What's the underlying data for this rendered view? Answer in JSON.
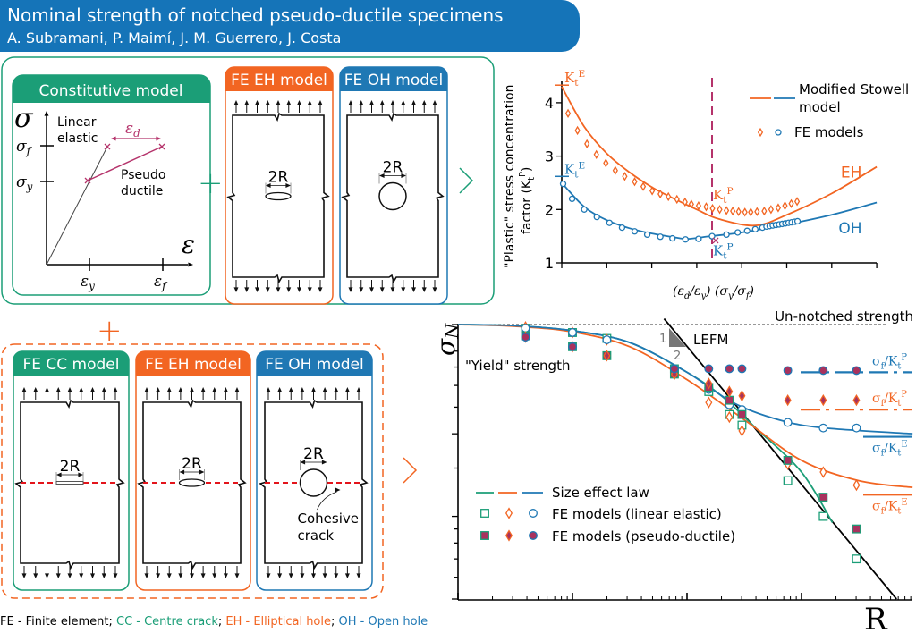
{
  "header": {
    "title": "Nominal strength of notched pseudo-ductile specimens",
    "authors": "A. Subramani, P. Maimí, J. M. Guerrero, J. Costa"
  },
  "colors": {
    "banner": "#1574b8",
    "green": "#1b9e77",
    "orange": "#f26522",
    "blue": "#1f78b4",
    "magenta": "#b5336b",
    "red": "#e3141b",
    "pd_fill": "#a8325e"
  },
  "constitutive": {
    "title": "Constitutive model",
    "sigma": "σ",
    "epsilon": "ε",
    "sigma_f": [
      [
        "σ",
        ""
      ],
      [
        "f",
        "sub"
      ]
    ],
    "sigma_y": [
      [
        "σ",
        ""
      ],
      [
        "y",
        "sub"
      ]
    ],
    "eps_y": [
      [
        "ε",
        ""
      ],
      [
        "y",
        "sub"
      ]
    ],
    "eps_f": [
      [
        "ε",
        ""
      ],
      [
        "f",
        "sub"
      ]
    ],
    "eps_d": [
      [
        "ε",
        ""
      ],
      [
        "d",
        "sub"
      ]
    ],
    "linear": [
      "Linear",
      "elastic"
    ],
    "pseudo": [
      "Pseudo",
      "ductile"
    ]
  },
  "plus": "+",
  "top_models": [
    {
      "title": "FE EH model",
      "hole": "ellipse",
      "dim": "2R",
      "color": "orange"
    },
    {
      "title": "FE OH model",
      "hole": "circle",
      "dim": "2R",
      "color": "blue"
    }
  ],
  "bottom_models": [
    {
      "title": "FE CC model",
      "hole": "crack",
      "dim": "2R",
      "color": "green"
    },
    {
      "title": "FE EH model",
      "hole": "ellipse",
      "dim": "2R",
      "color": "orange"
    },
    {
      "title": "FE OH model",
      "hole": "circle",
      "dim": "2R",
      "color": "blue"
    }
  ],
  "cohesive": [
    "Cohesive",
    "crack"
  ],
  "footer": [
    {
      "text": "FE - Finite element; ",
      "color": "black"
    },
    {
      "text": "CC - Centre crack",
      "color": "green"
    },
    {
      "text": "; ",
      "color": "black"
    },
    {
      "text": "EH - Elliptical hole",
      "color": "orange"
    },
    {
      "text": "; ",
      "color": "black"
    },
    {
      "text": "OH - Open hole",
      "color": "blue"
    }
  ],
  "chart_data": [
    {
      "type": "line+scatter",
      "ylabel": [
        "\"Plastic\" stress concentration",
        "factor"
      ],
      "ylabel_symbol": [
        [
          "(K",
          ""
        ],
        [
          "t",
          "sub"
        ],
        [
          "P",
          "sup"
        ],
        [
          ")",
          ""
        ]
      ],
      "xlabel": [
        [
          "(ε",
          ""
        ],
        [
          "d",
          "sub"
        ],
        [
          "/ε",
          ""
        ],
        [
          "y",
          "sub"
        ],
        [
          ") (σ",
          ""
        ],
        [
          "y",
          "sub"
        ],
        [
          "/σ",
          ""
        ],
        [
          "f",
          "sub"
        ],
        [
          ")",
          ""
        ]
      ],
      "ylim": [
        1,
        4.4
      ],
      "yticks": [
        1,
        2,
        3,
        4
      ],
      "xlim": [
        0,
        7
      ],
      "xticks": [
        0,
        1,
        2,
        3,
        4,
        5,
        6,
        7
      ],
      "marker_x": 3.34,
      "legend": {
        "placement": "top-right",
        "line_label": [
          "Modified Stowell",
          "model"
        ],
        "points_label": "FE models"
      },
      "series": [
        {
          "group": "EH",
          "kind": "line",
          "color": "orange",
          "x": [
            0,
            0.5,
            1,
            1.5,
            2,
            2.5,
            3,
            3.5,
            4.3,
            5,
            6,
            7
          ],
          "y": [
            4.3,
            3.55,
            3.05,
            2.7,
            2.42,
            2.2,
            2.0,
            1.82,
            1.7,
            1.9,
            2.3,
            2.8
          ]
        },
        {
          "group": "OH",
          "kind": "line",
          "color": "blue",
          "x": [
            0,
            0.5,
            1,
            1.5,
            2,
            2.5,
            2.8,
            3.3,
            4,
            5,
            6,
            7
          ],
          "y": [
            2.5,
            2.05,
            1.8,
            1.65,
            1.55,
            1.48,
            1.45,
            1.5,
            1.57,
            1.72,
            1.9,
            2.13
          ]
        },
        {
          "group": "EH",
          "kind": "points",
          "marker": "diamond",
          "color": "orange",
          "x": [
            0.14,
            0.35,
            0.56,
            0.77,
            0.98,
            1.19,
            1.4,
            1.62,
            1.81,
            2.01,
            2.19,
            2.37,
            2.56,
            2.74,
            2.88,
            3.04,
            3.21,
            3.35,
            3.51,
            3.66,
            3.8,
            3.93,
            4.07,
            4.2,
            4.34,
            4.5,
            4.65,
            4.81,
            4.96,
            5.1,
            5.23
          ],
          "y": [
            3.8,
            3.48,
            3.23,
            3.03,
            2.87,
            2.73,
            2.62,
            2.52,
            2.43,
            2.35,
            2.29,
            2.24,
            2.19,
            2.14,
            2.1,
            2.07,
            2.05,
            2.02,
            2.0,
            1.98,
            1.97,
            1.96,
            1.95,
            1.95,
            1.96,
            1.97,
            2.0,
            2.03,
            2.07,
            2.11,
            2.15
          ]
        },
        {
          "group": "OH",
          "kind": "points",
          "marker": "circle",
          "color": "blue",
          "x": [
            0.03,
            0.23,
            0.5,
            0.78,
            1.06,
            1.34,
            1.62,
            1.9,
            2.19,
            2.46,
            2.75,
            3.04,
            3.34,
            3.66,
            3.91,
            4.12,
            4.3,
            4.46,
            4.55,
            4.62,
            4.69,
            4.76,
            4.83,
            4.9,
            4.97,
            5.04,
            5.11,
            5.18,
            5.24
          ],
          "y": [
            2.48,
            2.2,
            2.0,
            1.86,
            1.75,
            1.66,
            1.59,
            1.53,
            1.49,
            1.46,
            1.44,
            1.45,
            1.5,
            1.53,
            1.57,
            1.6,
            1.63,
            1.66,
            1.68,
            1.69,
            1.7,
            1.71,
            1.72,
            1.73,
            1.74,
            1.75,
            1.76,
            1.77,
            1.78
          ]
        }
      ],
      "annotations": [
        {
          "text": [
            [
              "K",
              ""
            ],
            [
              "t",
              "sub"
            ],
            [
              "E",
              "sup"
            ]
          ],
          "color": "orange",
          "x": 0,
          "y": 4.33,
          "kind": "tick"
        },
        {
          "text": [
            [
              "K",
              ""
            ],
            [
              "t",
              "sub"
            ],
            [
              "E",
              "sup"
            ]
          ],
          "color": "blue",
          "x": 0,
          "y": 2.62,
          "kind": "tick"
        },
        {
          "text": [
            [
              "K",
              ""
            ],
            [
              "t",
              "sub"
            ],
            [
              "P",
              "sup"
            ]
          ],
          "color": "orange",
          "x": 3.34,
          "y": 2.02,
          "kind": "above"
        },
        {
          "text": [
            [
              "K",
              ""
            ],
            [
              "t",
              "sub"
            ],
            [
              "P",
              "sup"
            ]
          ],
          "color": "blue",
          "x": 3.34,
          "y": 1.48,
          "kind": "below"
        },
        {
          "text": "EH",
          "color": "orange",
          "x": 6.2,
          "y": 2.6,
          "kind": "label"
        },
        {
          "text": "OH",
          "color": "blue",
          "x": 6.15,
          "y": 1.55,
          "kind": "label"
        }
      ]
    },
    {
      "type": "line+scatter",
      "scale": "log-log",
      "ylabel": [
        [
          "σ",
          ""
        ],
        [
          "N",
          "sub"
        ]
      ],
      "xlabel": "R",
      "ylim": [
        0.1,
        1
      ],
      "yticks": [
        1,
        0.8,
        0.7,
        0.6,
        0.5,
        0.4,
        0.3,
        0.2,
        0.18,
        0.16,
        0.14,
        0.12,
        0.1
      ],
      "xlim_decades": [
        0,
        3.97
      ],
      "reference_lines": [
        {
          "label": "Un-notched strength",
          "y": 1.0
        },
        {
          "label": "\"Yield\" strength",
          "y": 0.65
        }
      ],
      "lefm": {
        "label": "LEFM",
        "slope_labels": [
          "1",
          "2"
        ],
        "x": [
          1.8,
          3.83
        ],
        "y": [
          1.05,
          0.1
        ]
      },
      "legend": {
        "placement": "bottom-left",
        "entries": [
          "Size effect law",
          "FE models (linear elastic)",
          "FE models (pseudo-ductile)"
        ]
      },
      "series": [
        {
          "group": "CC",
          "kind": "line",
          "color": "green",
          "x": [
            0,
            0.5,
            1,
            1.5,
            2,
            2.3,
            2.6,
            3,
            3.27
          ],
          "y": [
            1,
            0.99,
            0.95,
            0.86,
            0.67,
            0.55,
            0.42,
            0.29,
            0.19
          ]
        },
        {
          "group": "EH",
          "kind": "line",
          "color": "orange",
          "x": [
            0,
            0.5,
            1,
            1.5,
            2,
            2.5,
            3,
            3.5,
            3.97
          ],
          "y": [
            1,
            0.985,
            0.94,
            0.83,
            0.63,
            0.45,
            0.32,
            0.27,
            0.255
          ]
        },
        {
          "group": "OH",
          "kind": "line",
          "color": "blue",
          "x": [
            0,
            0.5,
            1,
            1.5,
            2,
            2.4,
            2.8,
            3.2,
            3.97
          ],
          "y": [
            1,
            0.99,
            0.95,
            0.86,
            0.67,
            0.52,
            0.45,
            0.42,
            0.4
          ]
        },
        {
          "group": "CC",
          "kind": "points",
          "fill": "open",
          "marker": "square",
          "color": "green",
          "x": [
            0.59,
            1.0,
            1.3,
            1.89,
            2.19,
            2.37,
            2.48,
            2.88,
            3.19,
            3.48
          ],
          "y": [
            0.97,
            0.935,
            0.89,
            0.69,
            0.57,
            0.47,
            0.43,
            0.27,
            0.2,
            0.14
          ]
        },
        {
          "group": "EH",
          "kind": "points",
          "fill": "open",
          "marker": "diamond",
          "color": "orange",
          "x": [
            0.59,
            1.0,
            1.3,
            1.89,
            2.19,
            2.37,
            2.48,
            2.88,
            3.19,
            3.48
          ],
          "y": [
            0.98,
            0.935,
            0.88,
            0.66,
            0.52,
            0.46,
            0.41,
            0.31,
            0.29,
            0.26
          ]
        },
        {
          "group": "OH",
          "kind": "points",
          "fill": "open",
          "marker": "circle",
          "color": "blue",
          "x": [
            0.59,
            1.0,
            1.3,
            1.89,
            2.19,
            2.37,
            2.48,
            2.88,
            3.19,
            3.48
          ],
          "y": [
            0.97,
            0.935,
            0.88,
            0.69,
            0.58,
            0.51,
            0.49,
            0.44,
            0.42,
            0.42
          ]
        },
        {
          "group": "CC",
          "kind": "points",
          "fill": "filled",
          "marker": "square",
          "color": "green",
          "x": [
            0.59,
            1.0,
            1.3,
            1.89,
            2.19,
            2.37,
            2.48,
            2.88,
            3.19,
            3.48
          ],
          "y": [
            0.91,
            0.83,
            0.77,
            0.66,
            0.59,
            0.53,
            0.47,
            0.32,
            0.235,
            0.18
          ]
        },
        {
          "group": "EH",
          "kind": "points",
          "fill": "filled",
          "marker": "diamond",
          "color": "orange",
          "x": [
            0.59,
            1.0,
            1.3,
            1.89,
            2.19,
            2.37,
            2.48,
            2.88,
            3.19,
            3.48
          ],
          "y": [
            0.9,
            0.83,
            0.77,
            0.66,
            0.61,
            0.57,
            0.55,
            0.53,
            0.53,
            0.53
          ]
        },
        {
          "group": "OH",
          "kind": "points",
          "fill": "filled",
          "marker": "circle",
          "color": "blue",
          "x": [
            0.59,
            1.0,
            1.89,
            2.19,
            2.37,
            2.48,
            2.88,
            3.19,
            3.48
          ],
          "y": [
            0.9,
            0.83,
            0.69,
            0.69,
            0.69,
            0.69,
            0.68,
            0.68,
            0.68
          ]
        }
      ],
      "asymptotes": [
        {
          "label": [
            [
              "σ",
              ""
            ],
            [
              "f",
              "sub"
            ],
            [
              "/K",
              ""
            ],
            [
              "t",
              "sub"
            ],
            [
              "P",
              "sup"
            ]
          ],
          "color": "blue",
          "style": "dashdot",
          "y": 0.67
        },
        {
          "label": [
            [
              "σ",
              ""
            ],
            [
              "f",
              "sub"
            ],
            [
              "/K",
              ""
            ],
            [
              "t",
              "sub"
            ],
            [
              "P",
              "sup"
            ]
          ],
          "color": "orange",
          "style": "dashdot",
          "y": 0.49
        },
        {
          "label": [
            [
              "σ",
              ""
            ],
            [
              "f",
              "sub"
            ],
            [
              "/K",
              ""
            ],
            [
              "t",
              "sub"
            ],
            [
              "E",
              "sup"
            ]
          ],
          "color": "blue",
          "style": "solid",
          "y": 0.39
        },
        {
          "label": [
            [
              "σ",
              ""
            ],
            [
              "f",
              "sub"
            ],
            [
              "/K",
              ""
            ],
            [
              "t",
              "sub"
            ],
            [
              "E",
              "sup"
            ]
          ],
          "color": "orange",
          "style": "solid",
          "y": 0.24
        }
      ]
    }
  ]
}
